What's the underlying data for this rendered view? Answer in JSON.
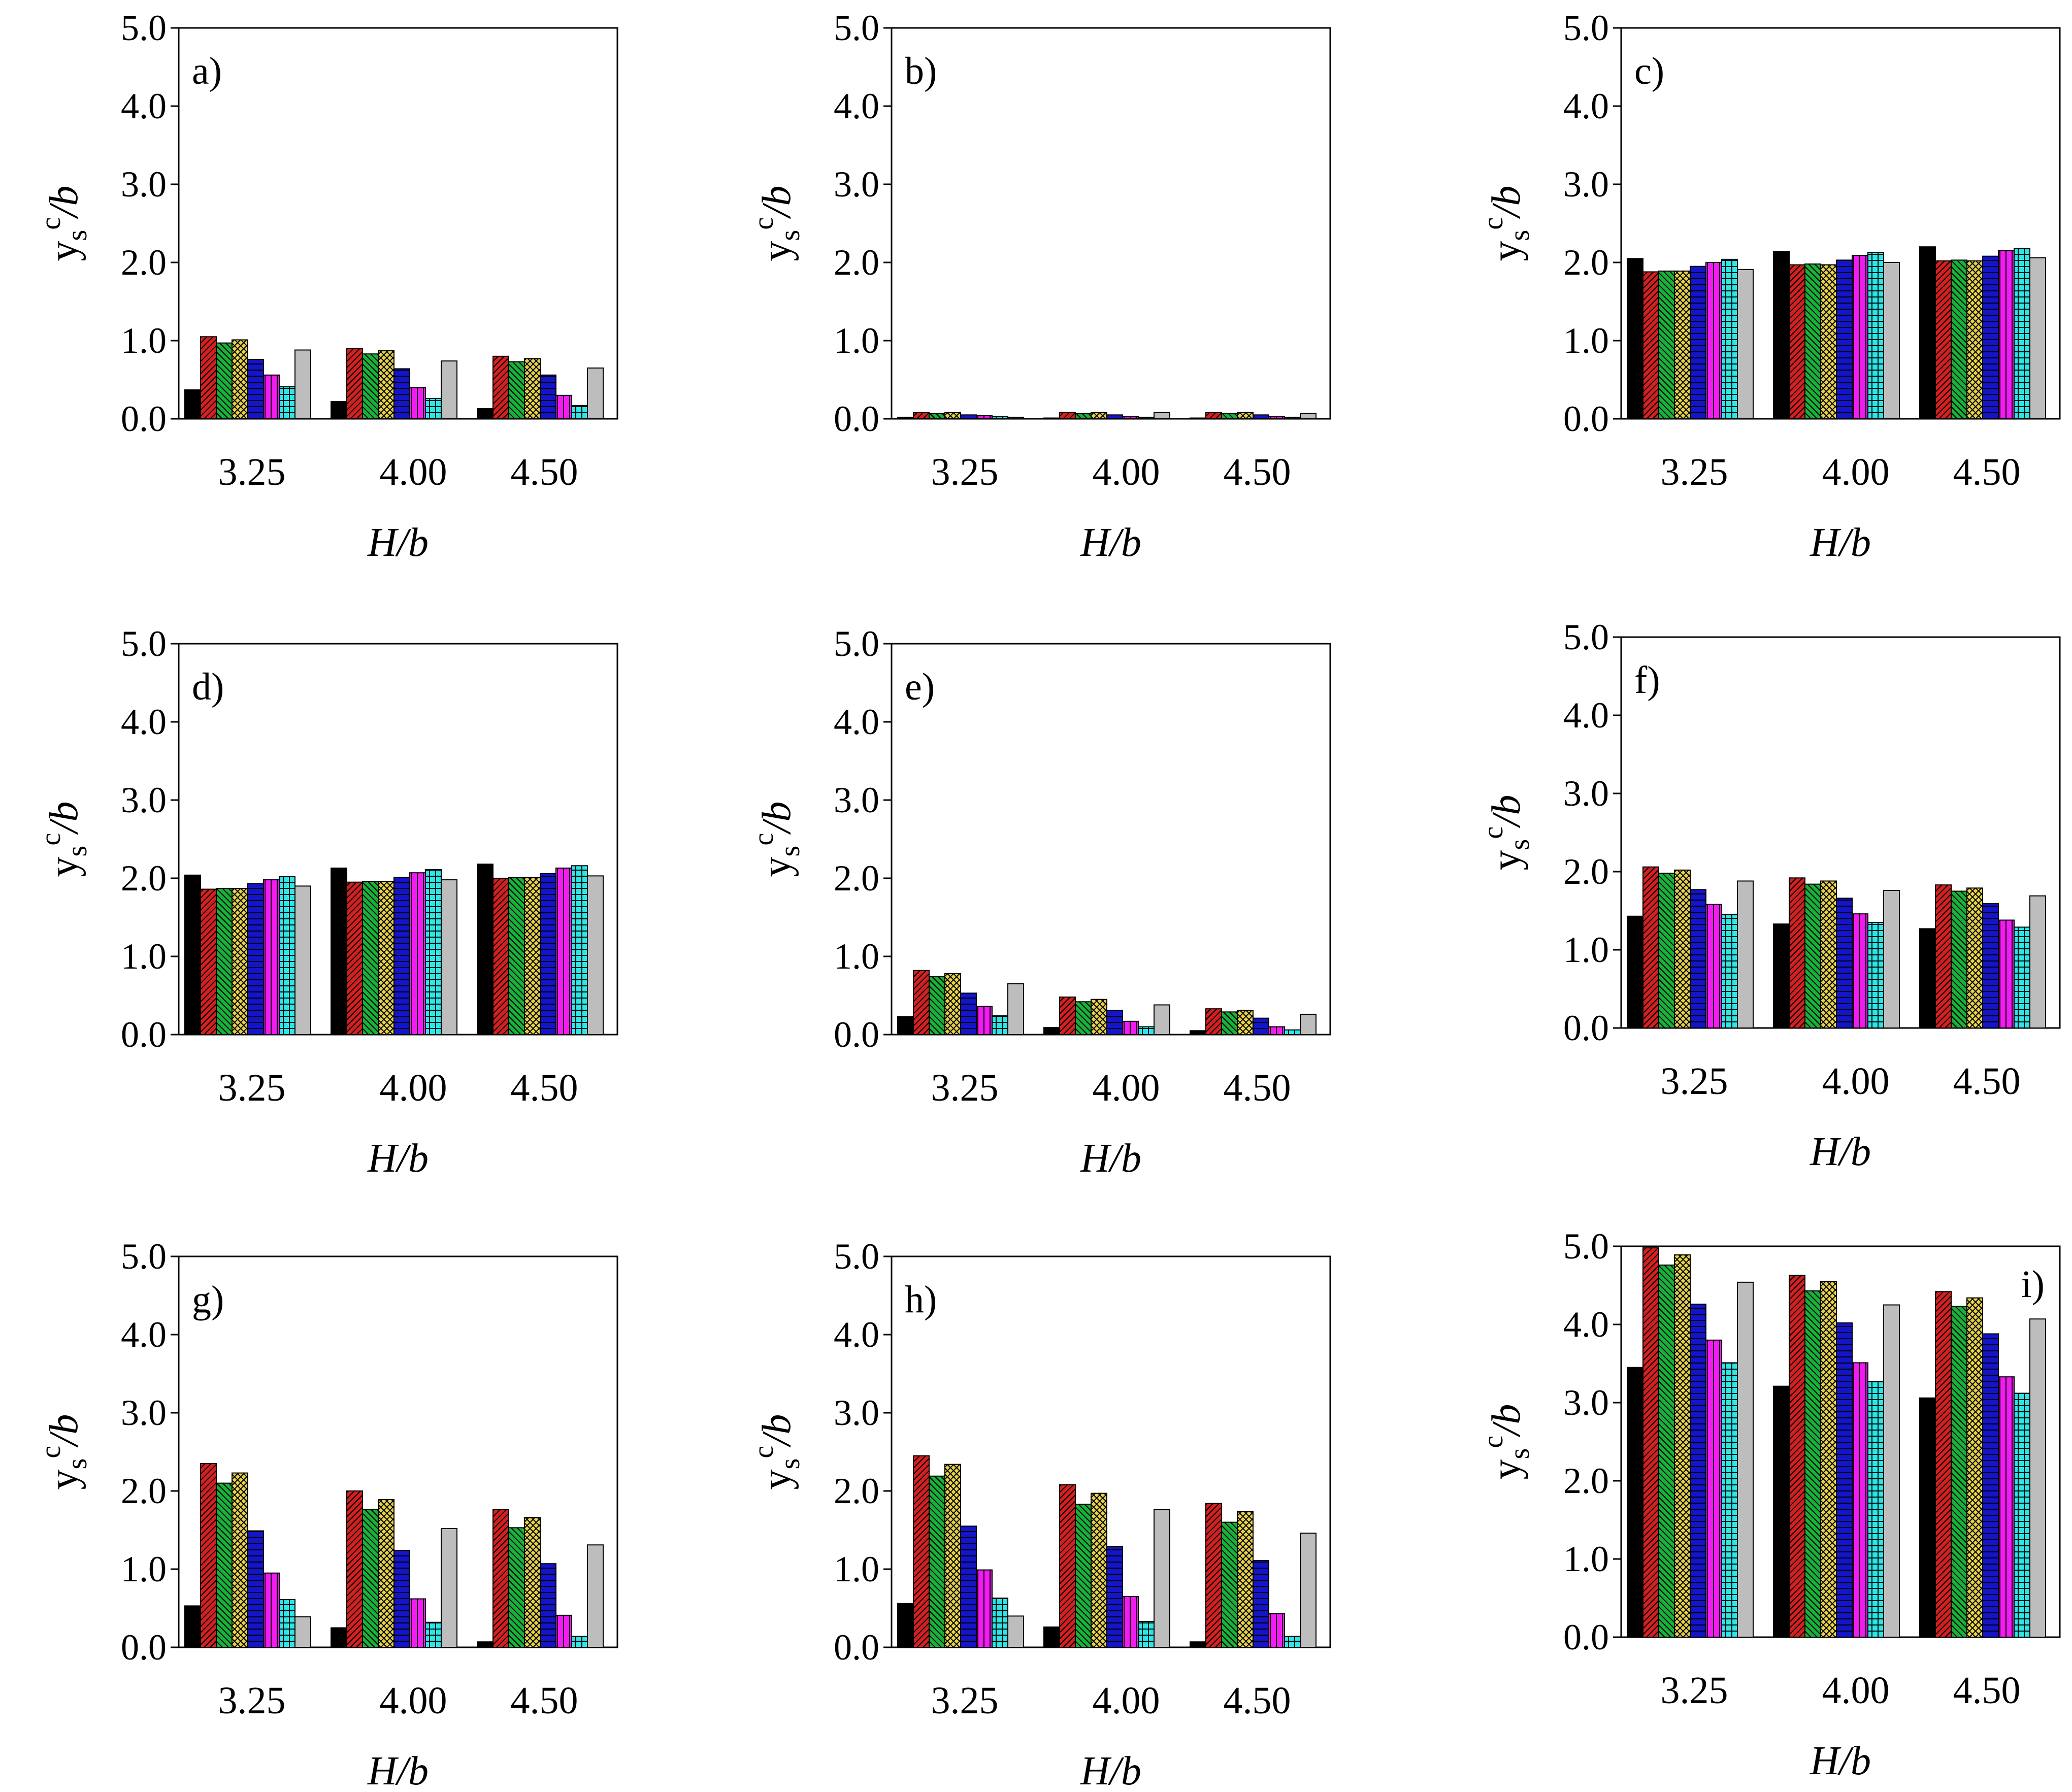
{
  "chart_data": [
    {
      "label": "a)",
      "label_position": "top-left",
      "type": "bar",
      "categories": [
        "3.25",
        "4.00",
        "4.50"
      ],
      "xlabel": "H/b",
      "ylim": [
        0,
        5
      ],
      "yticks": [
        "0.0",
        "1.0",
        "2.0",
        "3.0",
        "4.0",
        "5.0"
      ],
      "series": [
        {
          "values": [
            0.37,
            0.22,
            0.13
          ]
        },
        {
          "values": [
            1.05,
            0.9,
            0.8
          ]
        },
        {
          "values": [
            0.97,
            0.83,
            0.73
          ]
        },
        {
          "values": [
            1.01,
            0.87,
            0.77
          ]
        },
        {
          "values": [
            0.76,
            0.64,
            0.56
          ]
        },
        {
          "values": [
            0.56,
            0.4,
            0.3
          ]
        },
        {
          "values": [
            0.41,
            0.26,
            0.17
          ]
        },
        {
          "values": [
            0.88,
            0.74,
            0.65
          ]
        }
      ]
    },
    {
      "label": "b)",
      "label_position": "top-left",
      "type": "bar",
      "categories": [
        "3.25",
        "4.00",
        "4.50"
      ],
      "xlabel": "H/b",
      "ylim": [
        0,
        5
      ],
      "yticks": [
        "0.0",
        "1.0",
        "2.0",
        "3.0",
        "4.0",
        "5.0"
      ],
      "series": [
        {
          "values": [
            0.02,
            0.01,
            0.01
          ]
        },
        {
          "values": [
            0.08,
            0.08,
            0.08
          ]
        },
        {
          "values": [
            0.07,
            0.07,
            0.07
          ]
        },
        {
          "values": [
            0.08,
            0.08,
            0.08
          ]
        },
        {
          "values": [
            0.05,
            0.05,
            0.05
          ]
        },
        {
          "values": [
            0.04,
            0.03,
            0.03
          ]
        },
        {
          "values": [
            0.03,
            0.02,
            0.02
          ]
        },
        {
          "values": [
            0.02,
            0.08,
            0.07
          ]
        }
      ]
    },
    {
      "label": "c)",
      "label_position": "top-left",
      "type": "bar",
      "categories": [
        "3.25",
        "4.00",
        "4.50"
      ],
      "xlabel": "H/b",
      "ylim": [
        0,
        5
      ],
      "yticks": [
        "0.0",
        "1.0",
        "2.0",
        "3.0",
        "4.0",
        "5.0"
      ],
      "series": [
        {
          "values": [
            2.05,
            2.14,
            2.2
          ]
        },
        {
          "values": [
            1.88,
            1.97,
            2.02
          ]
        },
        {
          "values": [
            1.89,
            1.98,
            2.03
          ]
        },
        {
          "values": [
            1.89,
            1.97,
            2.02
          ]
        },
        {
          "values": [
            1.95,
            2.03,
            2.08
          ]
        },
        {
          "values": [
            2.0,
            2.09,
            2.15
          ]
        },
        {
          "values": [
            2.04,
            2.13,
            2.18
          ]
        },
        {
          "values": [
            1.91,
            2.0,
            2.06
          ]
        }
      ]
    },
    {
      "label": "d)",
      "label_position": "top-left",
      "type": "bar",
      "categories": [
        "3.25",
        "4.00",
        "4.50"
      ],
      "xlabel": "H/b",
      "ylim": [
        0,
        5
      ],
      "yticks": [
        "0.0",
        "1.0",
        "2.0",
        "3.0",
        "4.0",
        "5.0"
      ],
      "series": [
        {
          "values": [
            2.04,
            2.13,
            2.18
          ]
        },
        {
          "values": [
            1.86,
            1.95,
            2.0
          ]
        },
        {
          "values": [
            1.87,
            1.96,
            2.01
          ]
        },
        {
          "values": [
            1.87,
            1.96,
            2.01
          ]
        },
        {
          "values": [
            1.93,
            2.01,
            2.06
          ]
        },
        {
          "values": [
            1.98,
            2.07,
            2.13
          ]
        },
        {
          "values": [
            2.02,
            2.11,
            2.16
          ]
        },
        {
          "values": [
            1.9,
            1.98,
            2.03
          ]
        }
      ]
    },
    {
      "label": "e)",
      "label_position": "top-left",
      "type": "bar",
      "categories": [
        "3.25",
        "4.00",
        "4.50"
      ],
      "xlabel": "H/b",
      "ylim": [
        0,
        5
      ],
      "yticks": [
        "0.0",
        "1.0",
        "2.0",
        "3.0",
        "4.0",
        "5.0"
      ],
      "series": [
        {
          "values": [
            0.23,
            0.09,
            0.05
          ]
        },
        {
          "values": [
            0.82,
            0.48,
            0.33
          ]
        },
        {
          "values": [
            0.74,
            0.42,
            0.29
          ]
        },
        {
          "values": [
            0.78,
            0.45,
            0.31
          ]
        },
        {
          "values": [
            0.53,
            0.31,
            0.21
          ]
        },
        {
          "values": [
            0.36,
            0.17,
            0.1
          ]
        },
        {
          "values": [
            0.24,
            0.1,
            0.06
          ]
        },
        {
          "values": [
            0.65,
            0.38,
            0.26
          ]
        }
      ]
    },
    {
      "label": "f)",
      "label_position": "top-left",
      "type": "bar",
      "categories": [
        "3.25",
        "4.00",
        "4.50"
      ],
      "xlabel": "H/b",
      "ylim": [
        0,
        5
      ],
      "yticks": [
        "0.0",
        "1.0",
        "2.0",
        "3.0",
        "4.0",
        "5.0"
      ],
      "series": [
        {
          "values": [
            1.43,
            1.33,
            1.27
          ]
        },
        {
          "values": [
            2.06,
            1.92,
            1.83
          ]
        },
        {
          "values": [
            1.98,
            1.84,
            1.75
          ]
        },
        {
          "values": [
            2.02,
            1.88,
            1.79
          ]
        },
        {
          "values": [
            1.77,
            1.66,
            1.59
          ]
        },
        {
          "values": [
            1.58,
            1.46,
            1.38
          ]
        },
        {
          "values": [
            1.45,
            1.35,
            1.29
          ]
        },
        {
          "values": [
            1.88,
            1.76,
            1.69
          ]
        }
      ]
    },
    {
      "label": "g)",
      "label_position": "top-left",
      "type": "bar",
      "categories": [
        "3.25",
        "4.00",
        "4.50"
      ],
      "xlabel": "H/b",
      "ylim": [
        0,
        5
      ],
      "yticks": [
        "0.0",
        "1.0",
        "2.0",
        "3.0",
        "4.0",
        "5.0"
      ],
      "series": [
        {
          "values": [
            0.53,
            0.25,
            0.07
          ]
        },
        {
          "values": [
            2.35,
            2.0,
            1.76
          ]
        },
        {
          "values": [
            2.1,
            1.76,
            1.53
          ]
        },
        {
          "values": [
            2.23,
            1.89,
            1.66
          ]
        },
        {
          "values": [
            1.49,
            1.24,
            1.07
          ]
        },
        {
          "values": [
            0.95,
            0.62,
            0.41
          ]
        },
        {
          "values": [
            0.61,
            0.32,
            0.14
          ]
        },
        {
          "values": [
            0.39,
            1.52,
            1.31
          ]
        }
      ]
    },
    {
      "label": "h)",
      "label_position": "top-left",
      "type": "bar",
      "categories": [
        "3.25",
        "4.00",
        "4.50"
      ],
      "xlabel": "H/b",
      "ylim": [
        0,
        5
      ],
      "yticks": [
        "0.0",
        "1.0",
        "2.0",
        "3.0",
        "4.0",
        "5.0"
      ],
      "series": [
        {
          "values": [
            0.56,
            0.26,
            0.07
          ]
        },
        {
          "values": [
            2.45,
            2.08,
            1.84
          ]
        },
        {
          "values": [
            2.19,
            1.83,
            1.6
          ]
        },
        {
          "values": [
            2.34,
            1.97,
            1.74
          ]
        },
        {
          "values": [
            1.55,
            1.29,
            1.11
          ]
        },
        {
          "values": [
            0.99,
            0.65,
            0.43
          ]
        },
        {
          "values": [
            0.63,
            0.33,
            0.14
          ]
        },
        {
          "values": [
            0.4,
            1.76,
            1.46
          ]
        }
      ]
    },
    {
      "label": "i)",
      "label_position": "top-right",
      "type": "bar",
      "categories": [
        "3.25",
        "4.00",
        "4.50"
      ],
      "xlabel": "H/b",
      "ylim": [
        0,
        5
      ],
      "yticks": [
        "0.0",
        "1.0",
        "2.0",
        "3.0",
        "4.0",
        "5.0"
      ],
      "series": [
        {
          "values": [
            3.45,
            3.21,
            3.06
          ]
        },
        {
          "values": [
            4.98,
            4.63,
            4.42
          ]
        },
        {
          "values": [
            4.76,
            4.43,
            4.23
          ]
        },
        {
          "values": [
            4.89,
            4.55,
            4.34
          ]
        },
        {
          "values": [
            4.26,
            4.02,
            3.88
          ]
        },
        {
          "values": [
            3.8,
            3.51,
            3.33
          ]
        },
        {
          "values": [
            3.51,
            3.27,
            3.12
          ]
        },
        {
          "values": [
            4.54,
            4.25,
            4.07
          ]
        }
      ]
    }
  ],
  "y_axis_label": {
    "base": "y",
    "sub": "s",
    "sup": "c",
    "rest": "/b"
  },
  "series_styles": [
    {
      "color": "#000000",
      "pattern": "solid"
    },
    {
      "color": "#d42020",
      "pattern": "diag-right"
    },
    {
      "color": "#18b23a",
      "pattern": "diag-left"
    },
    {
      "color": "#e6d24a",
      "pattern": "crosshatch"
    },
    {
      "color": "#1414c8",
      "pattern": "horizontal"
    },
    {
      "color": "#f21cf2",
      "pattern": "vertical"
    },
    {
      "color": "#2ee6e6",
      "pattern": "grid"
    },
    {
      "color": "#bdbdbd",
      "pattern": "solid"
    }
  ]
}
